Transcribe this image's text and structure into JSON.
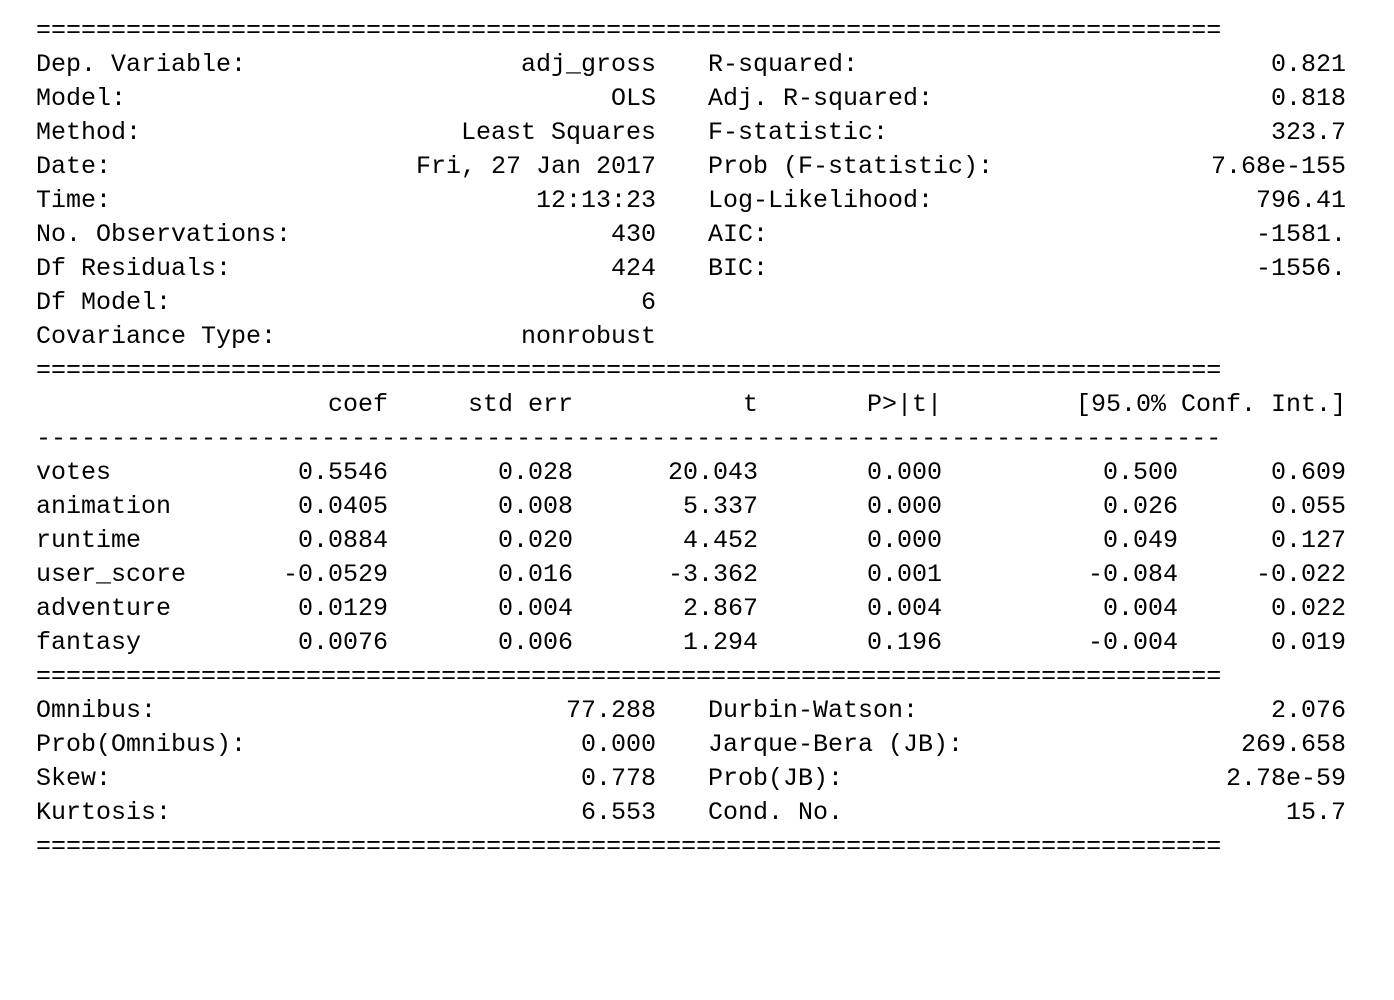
{
  "top_rule": "===============================================================================",
  "mid_rule": "===============================================================================",
  "dash_rule": "-------------------------------------------------------------------------------",
  "model_info": {
    "left": [
      {
        "label": "Dep. Variable:",
        "value": "adj_gross"
      },
      {
        "label": "Model:",
        "value": "OLS"
      },
      {
        "label": "Method:",
        "value": "Least Squares"
      },
      {
        "label": "Date:",
        "value": "Fri, 27 Jan 2017"
      },
      {
        "label": "Time:",
        "value": "12:13:23"
      },
      {
        "label": "No. Observations:",
        "value": "430"
      },
      {
        "label": "Df Residuals:",
        "value": "424"
      },
      {
        "label": "Df Model:",
        "value": "6"
      },
      {
        "label": "Covariance Type:",
        "value": "nonrobust"
      }
    ],
    "right": [
      {
        "label": "R-squared:",
        "value": "0.821"
      },
      {
        "label": "Adj. R-squared:",
        "value": "0.818"
      },
      {
        "label": "F-statistic:",
        "value": "323.7"
      },
      {
        "label": "Prob (F-statistic):",
        "value": "7.68e-155"
      },
      {
        "label": "Log-Likelihood:",
        "value": "796.41"
      },
      {
        "label": "AIC:",
        "value": "-1581."
      },
      {
        "label": "BIC:",
        "value": "-1556."
      }
    ]
  },
  "coef_table": {
    "headers": {
      "coef": "coef",
      "std_err": "std err",
      "t": "t",
      "p": "P>|t|",
      "ci": "[95.0% Conf. Int.]"
    },
    "rows": [
      {
        "name": "votes",
        "coef": "0.5546",
        "std_err": "0.028",
        "t": "20.043",
        "p": "0.000",
        "ci_low": "0.500",
        "ci_high": "0.609"
      },
      {
        "name": "animation",
        "coef": "0.0405",
        "std_err": "0.008",
        "t": "5.337",
        "p": "0.000",
        "ci_low": "0.026",
        "ci_high": "0.055"
      },
      {
        "name": "runtime",
        "coef": "0.0884",
        "std_err": "0.020",
        "t": "4.452",
        "p": "0.000",
        "ci_low": "0.049",
        "ci_high": "0.127"
      },
      {
        "name": "user_score",
        "coef": "-0.0529",
        "std_err": "0.016",
        "t": "-3.362",
        "p": "0.001",
        "ci_low": "-0.084",
        "ci_high": "-0.022"
      },
      {
        "name": "adventure",
        "coef": "0.0129",
        "std_err": "0.004",
        "t": "2.867",
        "p": "0.004",
        "ci_low": "0.004",
        "ci_high": "0.022"
      },
      {
        "name": "fantasy",
        "coef": "0.0076",
        "std_err": "0.006",
        "t": "1.294",
        "p": "0.196",
        "ci_low": "-0.004",
        "ci_high": "0.019"
      }
    ]
  },
  "diagnostics": [
    {
      "label1": "Omnibus:",
      "value1": "77.288",
      "label2": "Durbin-Watson:",
      "value2": "2.076"
    },
    {
      "label1": "Prob(Omnibus):",
      "value1": "0.000",
      "label2": "Jarque-Bera (JB):",
      "value2": "269.658"
    },
    {
      "label1": "Skew:",
      "value1": "0.778",
      "label2": "Prob(JB):",
      "value2": "2.78e-59"
    },
    {
      "label1": "Kurtosis:",
      "value1": "6.553",
      "label2": "Cond. No.",
      "value2": "15.7"
    }
  ]
}
